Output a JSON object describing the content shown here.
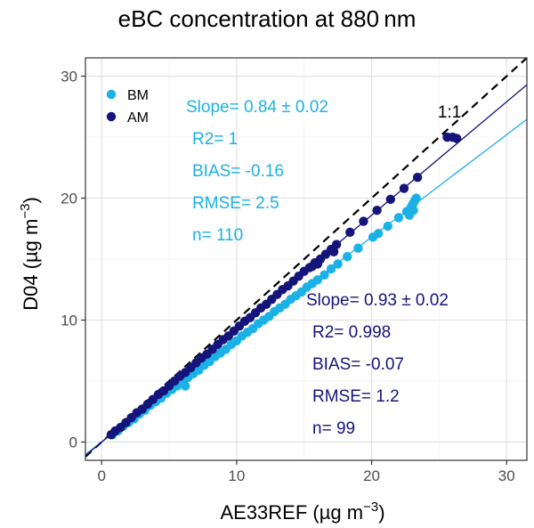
{
  "chart_data": {
    "type": "scatter",
    "title": "eBC concentration at 880 nm",
    "xlabel": "AE33REF (µg m",
    "xlabel_sup": "−3",
    "xlabel_close": ")",
    "ylabel": "D04 (µg m",
    "ylabel_sup": "−3",
    "ylabel_close": ")",
    "xlim": [
      -1.2,
      31.5
    ],
    "ylim": [
      -1.5,
      31.5
    ],
    "xticks": [
      0,
      10,
      20,
      30
    ],
    "yticks": [
      0,
      10,
      20,
      30
    ],
    "xtick_labels": [
      "0",
      "10",
      "20",
      "30"
    ],
    "ytick_labels": [
      "0",
      "10",
      "20",
      "30"
    ],
    "grid": true,
    "legend_position": "top-left",
    "one_to_one_label": "1:1",
    "series": [
      {
        "name": "BM",
        "color": "#1ab2e6",
        "fit": {
          "slope": 0.84,
          "intercept": 0.0
        },
        "stats": [
          "Slope= 0.84 ± 0.02",
          "R2= 1",
          "BIAS= -0.16",
          "RMSE= 2.5",
          "n= 110"
        ],
        "points": [
          [
            0.8,
            0.6
          ],
          [
            1.2,
            0.9
          ],
          [
            1.6,
            1.3
          ],
          [
            2.0,
            1.6
          ],
          [
            2.4,
            1.9
          ],
          [
            2.8,
            2.3
          ],
          [
            3.2,
            2.6
          ],
          [
            3.6,
            3.0
          ],
          [
            4.0,
            3.3
          ],
          [
            4.4,
            3.6
          ],
          [
            4.8,
            4.0
          ],
          [
            5.2,
            4.3
          ],
          [
            5.6,
            4.6
          ],
          [
            6.0,
            4.9
          ],
          [
            6.2,
            4.6
          ],
          [
            6.4,
            5.3
          ],
          [
            6.8,
            5.6
          ],
          [
            7.2,
            5.9
          ],
          [
            7.6,
            6.3
          ],
          [
            8.0,
            6.6
          ],
          [
            8.4,
            7.0
          ],
          [
            8.8,
            7.3
          ],
          [
            9.2,
            7.6
          ],
          [
            9.6,
            8.0
          ],
          [
            10.0,
            8.3
          ],
          [
            10.4,
            8.7
          ],
          [
            10.8,
            9.0
          ],
          [
            11.2,
            9.3
          ],
          [
            11.6,
            9.7
          ],
          [
            12.0,
            10.0
          ],
          [
            12.4,
            10.3
          ],
          [
            12.8,
            10.7
          ],
          [
            13.2,
            11.0
          ],
          [
            13.6,
            11.3
          ],
          [
            14.0,
            11.7
          ],
          [
            14.4,
            12.0
          ],
          [
            14.8,
            12.3
          ],
          [
            15.2,
            12.7
          ],
          [
            15.6,
            13.0
          ],
          [
            16.0,
            13.3
          ],
          [
            16.5,
            13.7
          ],
          [
            17.0,
            14.2
          ],
          [
            17.5,
            14.6
          ],
          [
            18.2,
            15.2
          ],
          [
            19.0,
            15.9
          ],
          [
            20.1,
            16.8
          ],
          [
            20.5,
            17.1
          ],
          [
            21.2,
            17.7
          ],
          [
            22.0,
            18.4
          ],
          [
            22.6,
            18.9
          ],
          [
            22.9,
            19.2
          ],
          [
            23.0,
            19.4
          ],
          [
            23.1,
            19.6
          ],
          [
            23.2,
            19.8
          ],
          [
            23.3,
            20.0
          ],
          [
            23.1,
            19.0
          ],
          [
            22.8,
            18.6
          ]
        ]
      },
      {
        "name": "AM",
        "color": "#14147a",
        "fit": {
          "slope": 0.93,
          "intercept": 0.0
        },
        "stats": [
          "Slope= 0.93 ± 0.02",
          "R2= 0.998",
          "BIAS= -0.07",
          "RMSE= 1.2",
          "n= 99"
        ],
        "points": [
          [
            0.7,
            0.6
          ],
          [
            1.0,
            0.9
          ],
          [
            1.4,
            1.2
          ],
          [
            1.8,
            1.6
          ],
          [
            2.2,
            2.0
          ],
          [
            2.6,
            2.4
          ],
          [
            3.0,
            2.7
          ],
          [
            3.4,
            3.1
          ],
          [
            3.8,
            3.5
          ],
          [
            4.2,
            3.9
          ],
          [
            4.6,
            4.2
          ],
          [
            5.0,
            4.6
          ],
          [
            5.4,
            5.0
          ],
          [
            5.8,
            5.4
          ],
          [
            6.2,
            5.7
          ],
          [
            6.6,
            6.1
          ],
          [
            7.0,
            6.5
          ],
          [
            7.4,
            6.9
          ],
          [
            7.8,
            7.2
          ],
          [
            8.2,
            7.6
          ],
          [
            8.6,
            8.0
          ],
          [
            9.0,
            8.4
          ],
          [
            9.4,
            8.7
          ],
          [
            9.8,
            9.1
          ],
          [
            10.2,
            9.5
          ],
          [
            10.6,
            9.9
          ],
          [
            11.0,
            10.2
          ],
          [
            11.4,
            10.6
          ],
          [
            11.8,
            11.0
          ],
          [
            12.2,
            11.3
          ],
          [
            12.6,
            11.7
          ],
          [
            13.0,
            12.1
          ],
          [
            13.4,
            12.5
          ],
          [
            13.8,
            12.8
          ],
          [
            14.2,
            13.2
          ],
          [
            14.6,
            13.6
          ],
          [
            15.0,
            14.0
          ],
          [
            15.4,
            14.3
          ],
          [
            15.8,
            14.7
          ],
          [
            16.2,
            15.0
          ],
          [
            16.6,
            15.4
          ],
          [
            17.0,
            15.8
          ],
          [
            17.4,
            16.2
          ],
          [
            18.4,
            17.2
          ],
          [
            19.4,
            18.1
          ],
          [
            20.4,
            19.0
          ],
          [
            21.4,
            19.9
          ],
          [
            22.4,
            20.8
          ],
          [
            23.4,
            21.7
          ],
          [
            25.6,
            25.0
          ],
          [
            26.0,
            25.0
          ],
          [
            26.3,
            24.9
          ],
          [
            15.6,
            14.4
          ],
          [
            16.0,
            14.6
          ],
          [
            17.2,
            15.6
          ]
        ]
      }
    ]
  }
}
